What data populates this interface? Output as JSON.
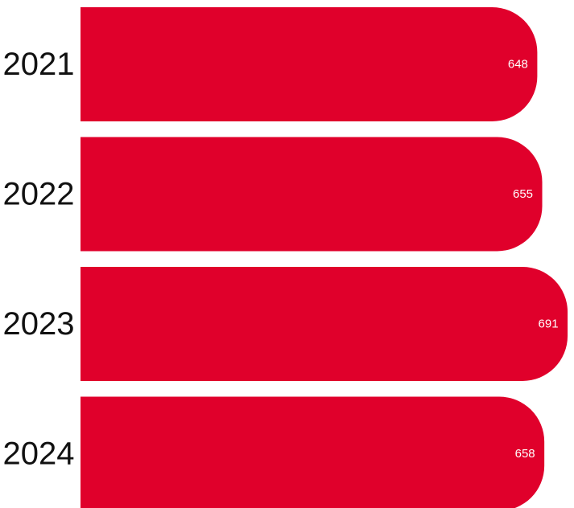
{
  "chart_data": {
    "type": "bar",
    "orientation": "horizontal",
    "categories": [
      "2021",
      "2022",
      "2023",
      "2024"
    ],
    "values": [
      648,
      655,
      691,
      658
    ],
    "title": "",
    "xlabel": "",
    "ylabel": "",
    "grid": false,
    "legend": "none",
    "bar_color": "#E0002B",
    "label_color": "#FFFFFF",
    "axis_label_color": "#111111"
  }
}
